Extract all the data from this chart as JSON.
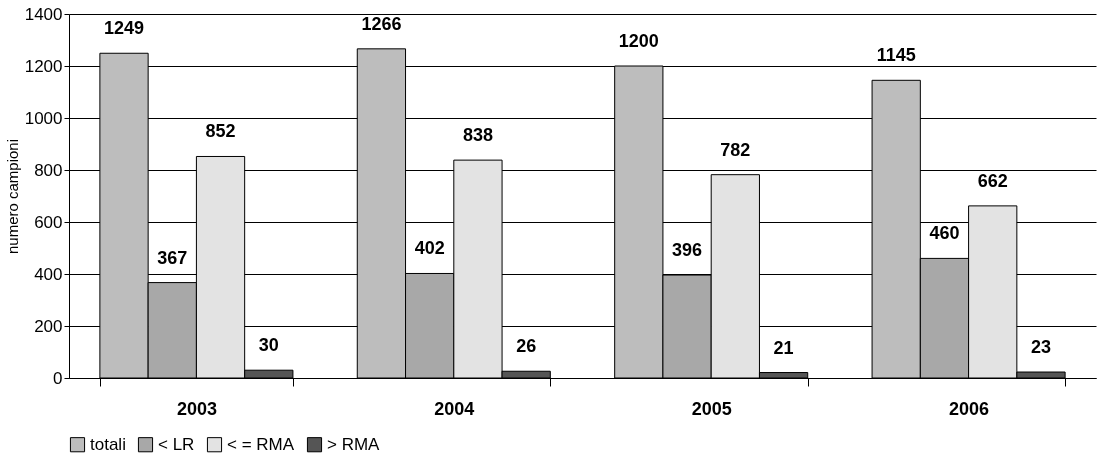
{
  "chart_data": {
    "type": "bar",
    "ylabel": "numero campioni",
    "categories": [
      "2003",
      "2004",
      "2005",
      "2006"
    ],
    "series": [
      {
        "name": "totali",
        "color": "#bdbdbd",
        "values": [
          1249,
          1266,
          1200,
          1145
        ]
      },
      {
        "name": "< LR",
        "color": "#a8a8a8",
        "values": [
          367,
          402,
          396,
          460
        ]
      },
      {
        "name": "< = RMA",
        "color": "#e3e3e3",
        "values": [
          852,
          838,
          782,
          662
        ]
      },
      {
        "name": "> RMA",
        "color": "#555555",
        "values": [
          30,
          26,
          21,
          23
        ]
      }
    ],
    "ylim": [
      0,
      1400
    ],
    "yticks": [
      0,
      200,
      400,
      600,
      800,
      1000,
      1200,
      1400
    ],
    "grid": "y",
    "legend": "bottom",
    "data_labels": true
  }
}
